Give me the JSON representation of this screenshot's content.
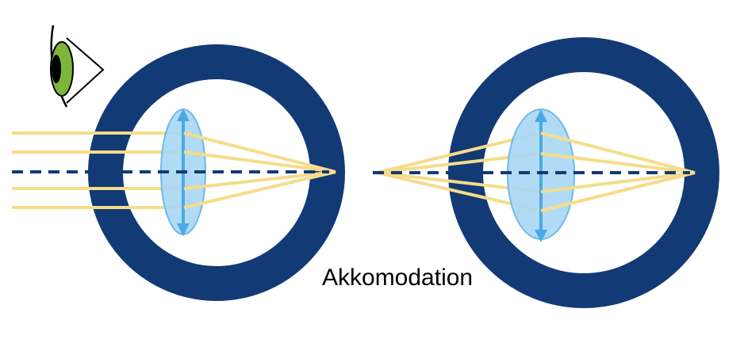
{
  "caption": "Akkomodation",
  "colors": {
    "eyeball": "#123a75",
    "lens_fill": "#a9d8f5",
    "lens_stroke": "#5fb3e8",
    "arrow": "#4aa8e6",
    "ray": "#f6dc8a",
    "axis": "#123a75",
    "iris": "#7db53a",
    "pupil": "#000000"
  },
  "icons": [
    "eye-icon"
  ]
}
